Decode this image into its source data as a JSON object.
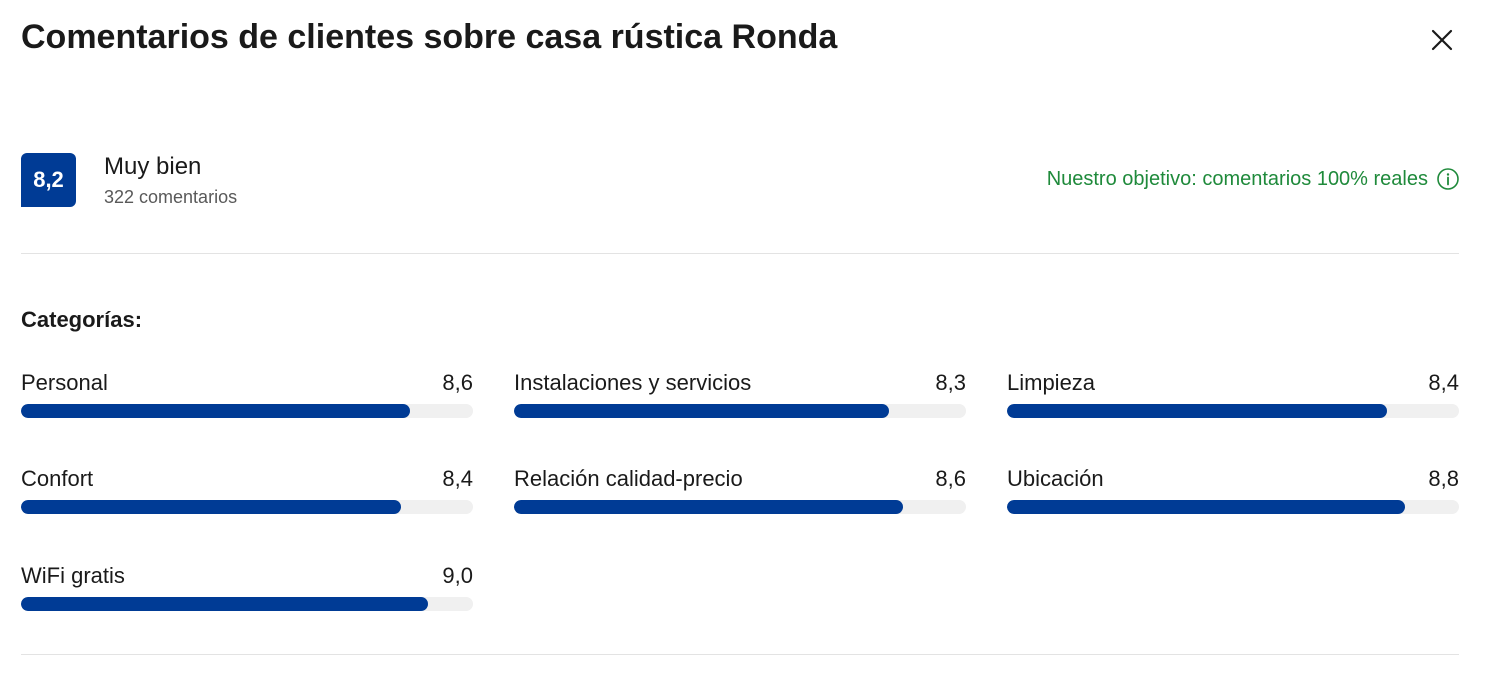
{
  "header": {
    "title": "Comentarios de clientes sobre casa rústica Ronda",
    "close_icon": "close-icon"
  },
  "summary": {
    "score": "8,2",
    "rating_word": "Muy bien",
    "review_count": "322 comentarios",
    "goal_text": "Nuestro objetivo: comentarios 100% reales",
    "goal_icon": "info-icon",
    "accent_color": "#003b95",
    "goal_color": "#1f8a3b"
  },
  "categories": {
    "heading": "Categorías:",
    "items": [
      {
        "label": "Personal",
        "score": "8,6",
        "value": 8.6
      },
      {
        "label": "Instalaciones y servicios",
        "score": "8,3",
        "value": 8.3
      },
      {
        "label": "Limpieza",
        "score": "8,4",
        "value": 8.4
      },
      {
        "label": "Confort",
        "score": "8,4",
        "value": 8.4
      },
      {
        "label": "Relación calidad-precio",
        "score": "8,6",
        "value": 8.6
      },
      {
        "label": "Ubicación",
        "score": "8,8",
        "value": 8.8
      },
      {
        "label": "WiFi gratis",
        "score": "9,0",
        "value": 9.0
      }
    ],
    "max_value": 10
  }
}
